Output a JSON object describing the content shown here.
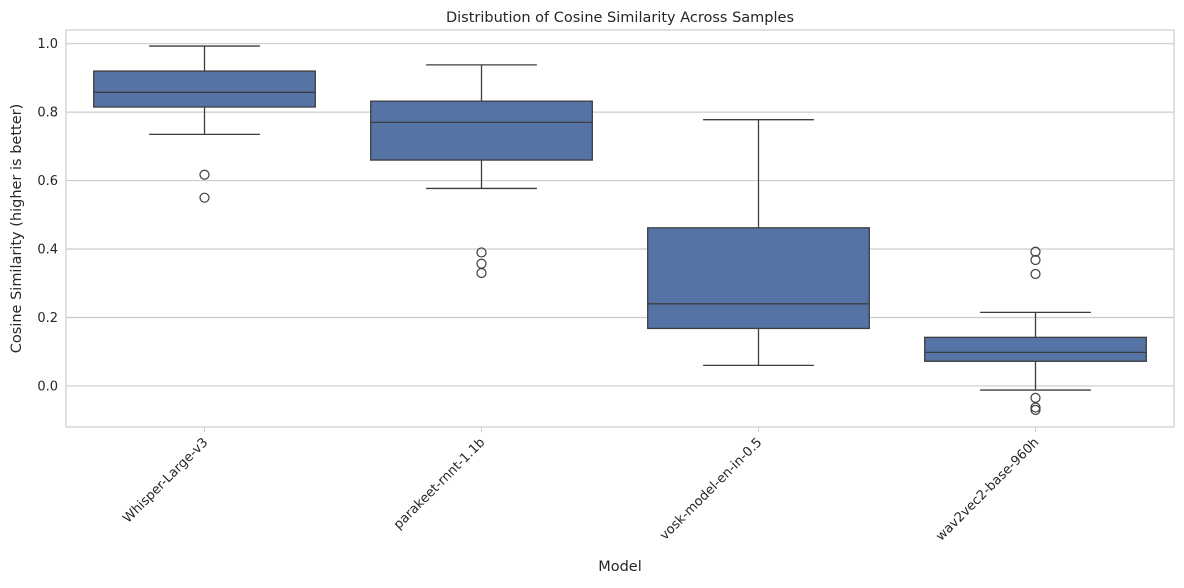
{
  "chart_data": {
    "type": "box",
    "title": "Distribution of Cosine Similarity Across Samples",
    "xlabel": "Model",
    "ylabel": "Cosine Similarity (higher is better)",
    "ylim": [
      -0.12,
      1.04
    ],
    "yticks": [
      0.0,
      0.2,
      0.4,
      0.6,
      0.8,
      1.0
    ],
    "ytick_labels": [
      "0.0",
      "0.2",
      "0.4",
      "0.6",
      "0.8",
      "1.0"
    ],
    "grid": true,
    "box_color": "#5673a5",
    "line_color": "#3d3d3d",
    "categories": [
      "Whisper-Large-v3",
      "parakeet-rnnt-1.1b",
      "vosk-model-en-in-0.5",
      "wav2vec2-base-960h"
    ],
    "boxes": [
      {
        "name": "Whisper-Large-v3",
        "whisker_low": 0.735,
        "q1": 0.815,
        "median": 0.858,
        "q3": 0.92,
        "whisker_high": 0.993,
        "outliers": [
          0.617,
          0.55
        ]
      },
      {
        "name": "parakeet-rnnt-1.1b",
        "whisker_low": 0.577,
        "q1": 0.66,
        "median": 0.77,
        "q3": 0.832,
        "whisker_high": 0.938,
        "outliers": [
          0.39,
          0.357,
          0.33
        ]
      },
      {
        "name": "vosk-model-en-in-0.5",
        "whisker_low": 0.06,
        "q1": 0.168,
        "median": 0.24,
        "q3": 0.462,
        "whisker_high": 0.778,
        "outliers": []
      },
      {
        "name": "wav2vec2-base-960h",
        "whisker_low": -0.012,
        "q1": 0.072,
        "median": 0.098,
        "q3": 0.142,
        "whisker_high": 0.215,
        "outliers": [
          0.392,
          0.368,
          0.327,
          -0.035,
          -0.063,
          -0.07
        ]
      }
    ]
  }
}
